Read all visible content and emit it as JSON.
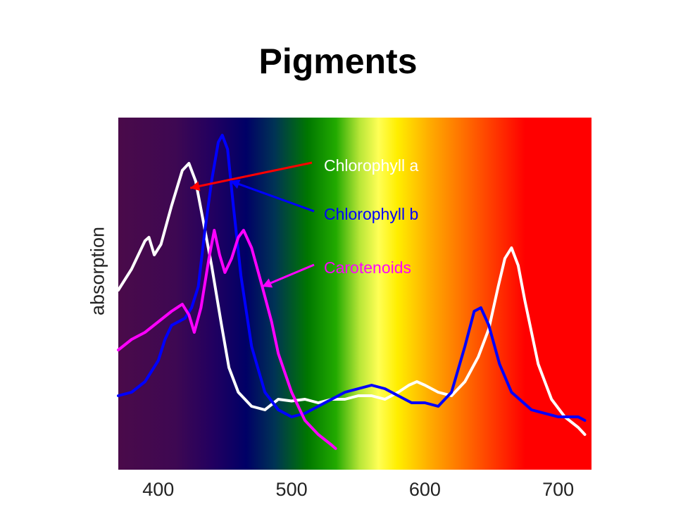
{
  "title": "Pigments",
  "chart_data": {
    "type": "line",
    "xlabel": "",
    "ylabel": "absorption",
    "xlim": [
      370,
      725
    ],
    "ylim": [
      0,
      100
    ],
    "xticks": [
      400,
      500,
      600,
      700
    ],
    "background": "visible light spectrum gradient (violet to red)",
    "grid": false,
    "series": [
      {
        "name": "Chlorophyll a",
        "color": "#ffffff",
        "arrow_color": "#ff0000",
        "label_color": "#ffffff",
        "points": [
          [
            370,
            51
          ],
          [
            380,
            57
          ],
          [
            390,
            65
          ],
          [
            393,
            66
          ],
          [
            397,
            61
          ],
          [
            402,
            64
          ],
          [
            410,
            75
          ],
          [
            418,
            85
          ],
          [
            423,
            87
          ],
          [
            428,
            82
          ],
          [
            433,
            72
          ],
          [
            440,
            58
          ],
          [
            447,
            42
          ],
          [
            453,
            29
          ],
          [
            460,
            22
          ],
          [
            470,
            18
          ],
          [
            480,
            17
          ],
          [
            490,
            20
          ],
          [
            500,
            19.5
          ],
          [
            510,
            20
          ],
          [
            520,
            19
          ],
          [
            530,
            20
          ],
          [
            540,
            20
          ],
          [
            550,
            21
          ],
          [
            560,
            21
          ],
          [
            570,
            20
          ],
          [
            580,
            22
          ],
          [
            588,
            24
          ],
          [
            594,
            25
          ],
          [
            600,
            24
          ],
          [
            610,
            22
          ],
          [
            620,
            21
          ],
          [
            630,
            25
          ],
          [
            640,
            32
          ],
          [
            648,
            40
          ],
          [
            655,
            52
          ],
          [
            660,
            60
          ],
          [
            665,
            63
          ],
          [
            670,
            58
          ],
          [
            675,
            48
          ],
          [
            685,
            30
          ],
          [
            695,
            20
          ],
          [
            705,
            15
          ],
          [
            715,
            12
          ],
          [
            720,
            10
          ]
        ]
      },
      {
        "name": "Chlorophyll b",
        "color": "#0000ff",
        "arrow_color": "#0000ff",
        "label_color": "#0000ff",
        "points": [
          [
            370,
            21
          ],
          [
            380,
            22
          ],
          [
            390,
            25
          ],
          [
            400,
            31
          ],
          [
            405,
            37
          ],
          [
            410,
            41
          ],
          [
            420,
            43
          ],
          [
            425,
            46
          ],
          [
            430,
            52
          ],
          [
            435,
            68
          ],
          [
            440,
            82
          ],
          [
            445,
            93
          ],
          [
            448,
            95
          ],
          [
            452,
            91
          ],
          [
            456,
            76
          ],
          [
            462,
            55
          ],
          [
            470,
            35
          ],
          [
            480,
            22
          ],
          [
            490,
            17
          ],
          [
            500,
            15
          ],
          [
            510,
            16
          ],
          [
            520,
            18
          ],
          [
            530,
            20
          ],
          [
            540,
            22
          ],
          [
            550,
            23
          ],
          [
            560,
            24
          ],
          [
            570,
            23
          ],
          [
            580,
            21
          ],
          [
            590,
            19
          ],
          [
            600,
            19
          ],
          [
            610,
            18
          ],
          [
            620,
            22
          ],
          [
            630,
            35
          ],
          [
            637,
            45
          ],
          [
            642,
            46
          ],
          [
            648,
            41
          ],
          [
            656,
            30
          ],
          [
            665,
            22
          ],
          [
            680,
            17
          ],
          [
            700,
            15
          ],
          [
            715,
            15
          ],
          [
            720,
            14
          ]
        ]
      },
      {
        "name": "Carotenoids",
        "color": "#ff00ff",
        "arrow_color": "#ff00ff",
        "label_color": "#ff00ff",
        "points": [
          [
            370,
            34
          ],
          [
            380,
            37
          ],
          [
            390,
            39
          ],
          [
            400,
            42
          ],
          [
            410,
            45
          ],
          [
            418,
            47
          ],
          [
            423,
            44
          ],
          [
            427,
            39
          ],
          [
            432,
            46
          ],
          [
            438,
            60
          ],
          [
            442,
            68
          ],
          [
            446,
            61
          ],
          [
            450,
            56
          ],
          [
            455,
            60
          ],
          [
            460,
            66
          ],
          [
            464,
            68
          ],
          [
            470,
            63
          ],
          [
            478,
            52
          ],
          [
            485,
            42
          ],
          [
            490,
            33
          ],
          [
            500,
            22
          ],
          [
            510,
            14
          ],
          [
            520,
            10
          ],
          [
            530,
            7
          ],
          [
            533,
            6
          ]
        ]
      }
    ]
  }
}
